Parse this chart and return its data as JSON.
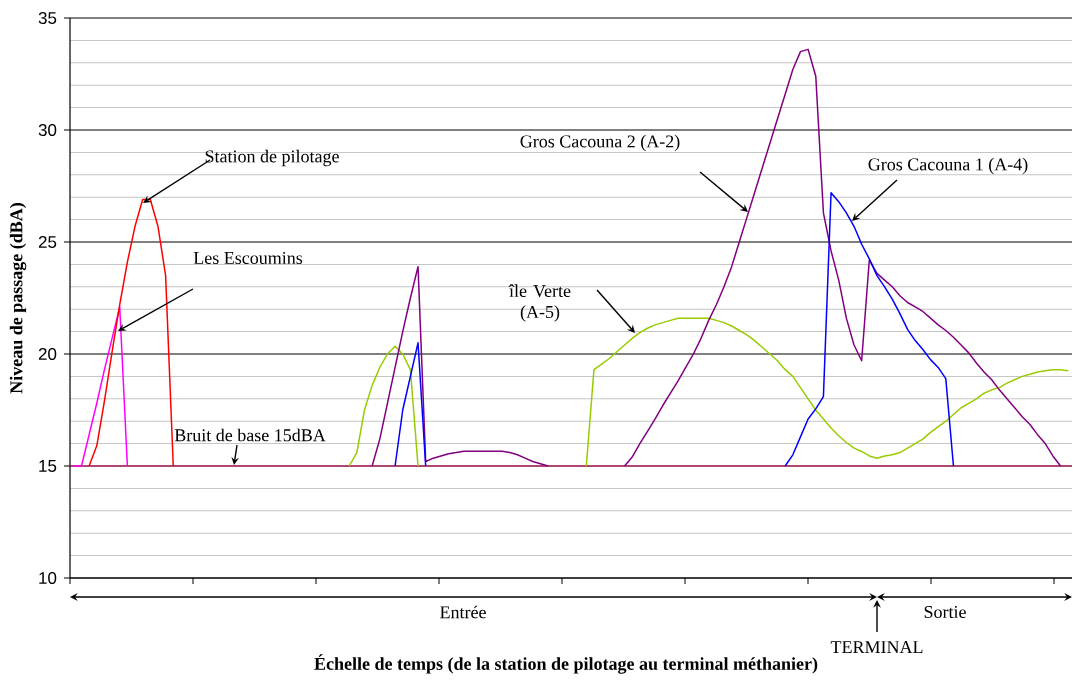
{
  "chart_data": {
    "type": "line",
    "xlabel": "Échelle de temps (de la station de pilotage au terminal méthanier)",
    "ylabel": "Niveau de passage (dBA)",
    "ylim": [
      10,
      35
    ],
    "yticks": [
      10,
      15,
      20,
      25,
      30,
      35
    ],
    "grid": "y",
    "tick_labels": "y",
    "marker": "none",
    "line_style": "solid",
    "categories": [
      null,
      null,
      null,
      null,
      null,
      null,
      null,
      null,
      null,
      null,
      null,
      null,
      null,
      null,
      null,
      null,
      null,
      null,
      null,
      null,
      null,
      null,
      null,
      null,
      null,
      null,
      null,
      null,
      null,
      null,
      null,
      null,
      null,
      null,
      null,
      null,
      null,
      null,
      null,
      null,
      null,
      null,
      null,
      null,
      null,
      null,
      null,
      null,
      null,
      null,
      null,
      null,
      null,
      null,
      null,
      null,
      null,
      null,
      null,
      null,
      null,
      null,
      null,
      null,
      null,
      null,
      null,
      null,
      null,
      null,
      null,
      null,
      null,
      null,
      null,
      null,
      null,
      null,
      null,
      null,
      null,
      null,
      null,
      null,
      null,
      null,
      null,
      null,
      null,
      null,
      null,
      null,
      null,
      null,
      null,
      null,
      null,
      null,
      null,
      null,
      null,
      null,
      null,
      null,
      null,
      null,
      null,
      null,
      null,
      null,
      null,
      null,
      null,
      null,
      null,
      null,
      null,
      null,
      null,
      null,
      null,
      null,
      null,
      null,
      null,
      null,
      null,
      null,
      null,
      null,
      null
    ],
    "ref_lines": [
      {
        "axis": "y",
        "value": 15,
        "label": "Bruit de base 15dBA",
        "color": "#dd1166"
      }
    ],
    "annotations": [
      "Station de pilotage",
      "Les Escoumins",
      "île Verte (A-5)",
      "Gros Cacouna 2  (A-2)",
      "Gros Cacouna 1  (A-4)",
      "Entrée",
      "Sortie",
      "TERMINAL"
    ],
    "series": [
      {
        "color": "#ff00ff",
        "values": [
          15,
          15,
          16.4,
          17.8,
          19.3,
          20.7,
          22.1,
          15,
          null,
          null,
          null,
          null,
          null,
          null,
          null,
          null,
          null,
          null,
          null,
          null,
          null,
          null,
          null,
          null,
          null,
          null,
          null,
          null,
          null,
          null,
          null,
          null,
          null,
          null,
          null,
          null,
          null,
          null,
          null,
          null,
          null,
          null,
          null,
          null,
          null,
          null,
          null,
          null,
          null,
          null,
          null,
          null,
          null,
          null,
          null,
          null,
          null,
          null,
          null,
          null,
          null,
          null,
          null,
          null,
          null,
          null,
          null,
          null,
          null,
          null,
          null,
          null,
          null,
          null,
          null,
          null,
          null,
          null,
          null,
          null,
          null,
          null,
          null,
          null,
          null,
          null,
          null,
          null,
          null,
          null,
          null,
          null,
          null,
          null,
          null,
          null,
          null,
          null,
          null,
          null,
          null,
          null,
          null,
          null,
          null,
          null,
          null,
          null,
          null,
          null,
          null,
          null,
          null,
          null,
          null,
          null,
          null,
          null,
          null,
          null,
          null,
          null,
          null,
          null,
          null,
          null,
          null,
          null,
          null,
          null,
          null
        ]
      },
      {
        "color": "#ff0000",
        "values": [
          null,
          null,
          15,
          15.9,
          17.9,
          20.1,
          22.2,
          24.1,
          25.7,
          26.9,
          26.9,
          25.7,
          23.5,
          15,
          null,
          null,
          null,
          null,
          null,
          null,
          null,
          null,
          null,
          null,
          null,
          null,
          null,
          null,
          null,
          null,
          null,
          null,
          null,
          null,
          null,
          null,
          null,
          null,
          null,
          null,
          null,
          null,
          null,
          null,
          null,
          null,
          null,
          null,
          null,
          null,
          null,
          null,
          null,
          null,
          null,
          null,
          null,
          null,
          null,
          null,
          null,
          null,
          null,
          null,
          null,
          null,
          null,
          null,
          null,
          null,
          null,
          null,
          null,
          null,
          null,
          null,
          null,
          null,
          null,
          null,
          null,
          null,
          null,
          null,
          null,
          null,
          null,
          null,
          null,
          null,
          null,
          null,
          null,
          null,
          null,
          null,
          null,
          null,
          null,
          null,
          null,
          null,
          null,
          null,
          null,
          null,
          null,
          null,
          null,
          null,
          null,
          null,
          null,
          null,
          null,
          null,
          null,
          null,
          null,
          null,
          null,
          null,
          null,
          null,
          null,
          null,
          null,
          null,
          null,
          null,
          null
        ]
      },
      {
        "color": "#99cc00",
        "values": [
          null,
          null,
          null,
          null,
          null,
          null,
          null,
          null,
          null,
          null,
          null,
          null,
          null,
          null,
          null,
          null,
          null,
          null,
          null,
          null,
          null,
          null,
          null,
          null,
          null,
          null,
          null,
          null,
          null,
          null,
          null,
          null,
          null,
          null,
          null,
          null,
          15,
          15.6,
          17.5,
          18.6,
          19.4,
          20.0,
          20.35,
          20.0,
          19.3,
          15,
          null,
          null,
          null,
          null,
          null,
          null,
          null,
          null,
          null,
          null,
          null,
          null,
          null,
          null,
          null,
          null,
          null,
          null,
          null,
          null,
          null,
          15,
          19.3,
          19.55,
          19.8,
          20.1,
          20.4,
          20.7,
          20.95,
          21.15,
          21.3,
          21.4,
          21.5,
          21.6,
          21.6,
          21.6,
          21.6,
          21.6,
          21.5,
          21.4,
          21.25,
          21.05,
          20.85,
          20.6,
          20.3,
          20.0,
          19.7,
          19.3,
          19.0,
          18.5,
          18.0,
          17.5,
          17.1,
          16.7,
          16.35,
          16.05,
          15.8,
          15.65,
          15.45,
          15.35,
          15.45,
          15.5,
          15.6,
          15.8,
          16.0,
          16.2,
          16.5,
          16.75,
          17.0,
          17.3,
          17.6,
          17.8,
          18.0,
          18.25,
          18.4,
          18.5,
          18.7,
          18.85,
          19.0,
          19.1,
          19.2,
          19.25,
          19.3,
          19.3,
          19.25
        ]
      },
      {
        "color": "#800080",
        "values": [
          null,
          null,
          null,
          null,
          null,
          null,
          null,
          null,
          null,
          null,
          null,
          null,
          null,
          null,
          null,
          null,
          null,
          null,
          null,
          null,
          null,
          null,
          null,
          null,
          null,
          null,
          null,
          null,
          null,
          null,
          null,
          null,
          null,
          null,
          null,
          null,
          null,
          null,
          null,
          15,
          16.2,
          17.8,
          19.4,
          21.0,
          22.5,
          23.9,
          15.2,
          15.35,
          15.45,
          15.55,
          15.6,
          15.66,
          15.66,
          15.66,
          15.66,
          15.66,
          15.66,
          15.6,
          15.5,
          15.35,
          15.2,
          15.1,
          15,
          null,
          null,
          null,
          null,
          null,
          null,
          null,
          null,
          null,
          15,
          15.4,
          16.0,
          16.55,
          17.1,
          17.7,
          18.25,
          18.8,
          19.4,
          20.0,
          20.7,
          21.5,
          22.2,
          23.0,
          23.9,
          25.0,
          26.1,
          27.2,
          28.3,
          29.4,
          30.5,
          31.6,
          32.7,
          33.5,
          33.6,
          32.4,
          26.3,
          24.6,
          23.3,
          21.6,
          20.4,
          19.7,
          24.2,
          23.6,
          23.3,
          23.0,
          22.6,
          22.3,
          22.1,
          21.9,
          21.6,
          21.3,
          21.05,
          20.75,
          20.4,
          20.05,
          19.6,
          19.2,
          18.85,
          18.4,
          18.0,
          17.6,
          17.2,
          16.85,
          16.4,
          16.0,
          15.45,
          15.0,
          null
        ]
      },
      {
        "color": "#0000ff",
        "values": [
          null,
          null,
          null,
          null,
          null,
          null,
          null,
          null,
          null,
          null,
          null,
          null,
          null,
          null,
          null,
          null,
          null,
          null,
          null,
          null,
          null,
          null,
          null,
          null,
          null,
          null,
          null,
          null,
          null,
          null,
          null,
          null,
          null,
          null,
          null,
          null,
          null,
          null,
          null,
          null,
          null,
          null,
          15,
          17.5,
          19.0,
          20.5,
          15,
          null,
          null,
          null,
          null,
          null,
          null,
          null,
          null,
          null,
          null,
          null,
          null,
          null,
          null,
          null,
          null,
          null,
          null,
          null,
          null,
          null,
          null,
          null,
          null,
          null,
          null,
          null,
          null,
          null,
          null,
          null,
          null,
          null,
          null,
          null,
          null,
          null,
          null,
          null,
          null,
          null,
          null,
          null,
          null,
          null,
          null,
          15,
          15.5,
          16.3,
          17.1,
          17.55,
          18.1,
          27.2,
          26.8,
          26.3,
          25.7,
          24.9,
          24.25,
          23.5,
          23.0,
          22.45,
          21.8,
          21.1,
          20.6,
          20.2,
          19.75,
          19.4,
          18.9,
          15,
          null,
          null,
          null,
          null,
          null,
          null,
          null,
          null,
          null,
          null,
          null,
          null,
          null,
          null,
          null
        ]
      }
    ]
  }
}
